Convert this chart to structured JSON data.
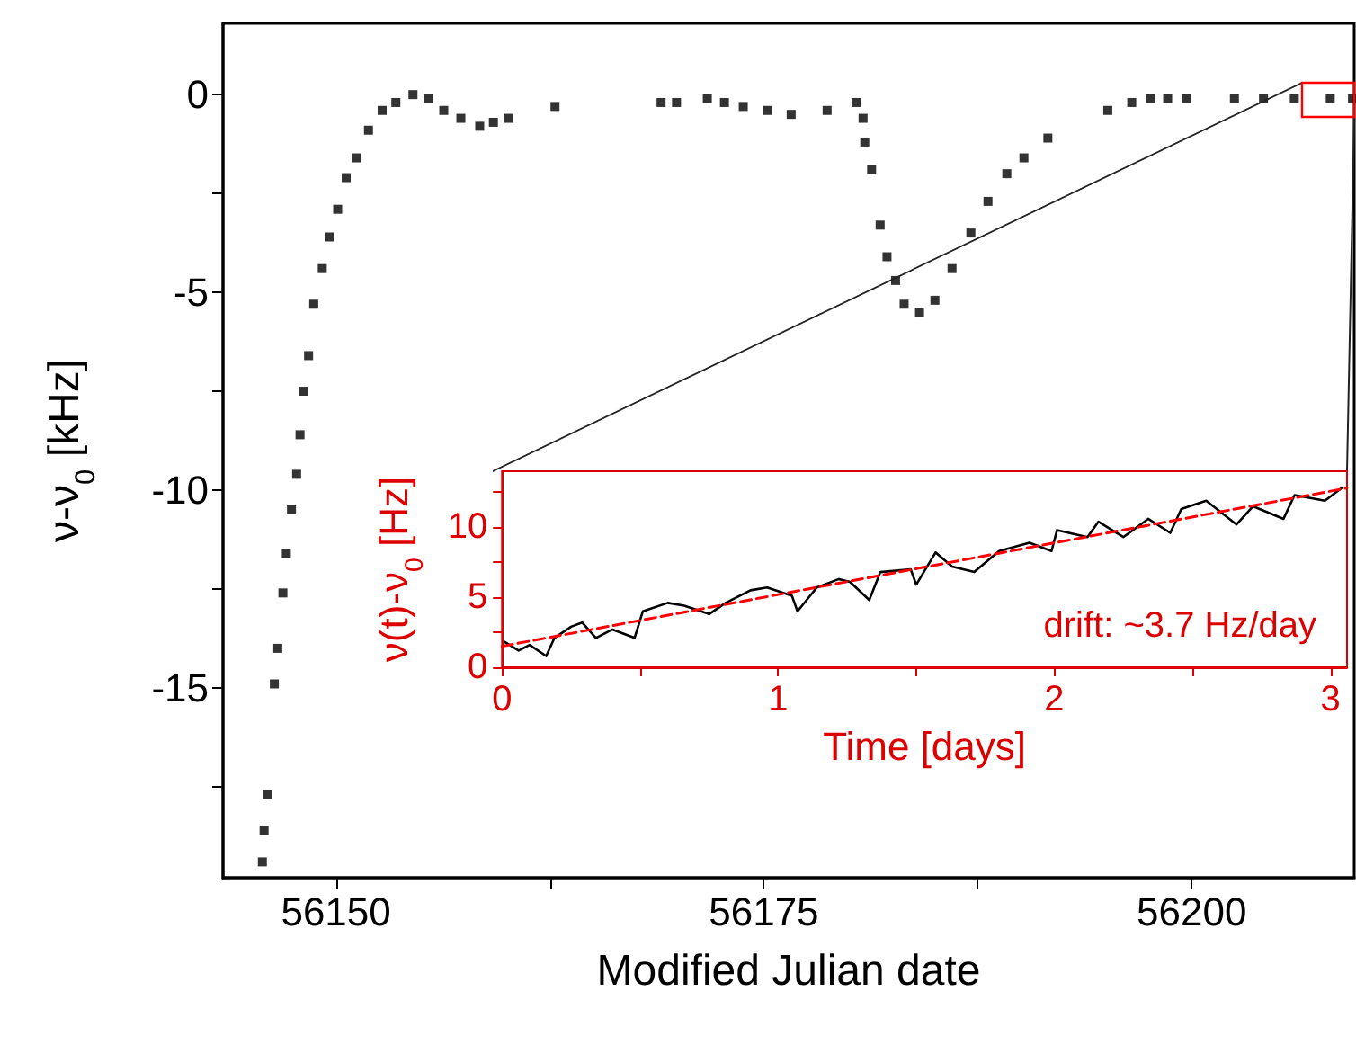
{
  "chart_data": [
    {
      "type": "scatter",
      "xlabel": "Modified Julian date",
      "ylabel": "ν-ν$_{0}$ [kHz]",
      "marker": "square",
      "xlim": [
        56143.4,
        56209.5
      ],
      "ylim": [
        -19.8,
        1.8
      ],
      "xticks": [
        56150,
        {
          "value": 56162.5,
          "label": null
        },
        56175,
        {
          "value": 56187.5,
          "label": null
        },
        56200
      ],
      "yticks": [
        {
          "value": -17.5,
          "label": null
        },
        -15,
        {
          "value": -12.5,
          "label": null
        },
        -10,
        {
          "value": -7.5,
          "label": null
        },
        -5,
        {
          "value": -2.5,
          "label": null
        },
        0
      ],
      "series": [
        {
          "color": "#000000",
          "x": [
            56145.7,
            56145.8,
            56146.0,
            56146.4,
            56146.6,
            56146.9,
            56147.1,
            56147.4,
            56147.7,
            56147.9,
            56148.1,
            56148.4,
            56148.7,
            56149.2,
            56149.6,
            56150.1,
            56150.6,
            56151.2,
            56151.9,
            56152.7,
            56153.5,
            56154.5,
            56155.4,
            56156.3,
            56157.3,
            56158.4,
            56159.2,
            56160.1,
            56162.8,
            56169.0,
            56169.9,
            56171.7,
            56172.7,
            56173.8,
            56175.2,
            56176.6,
            56178.7,
            56180.4,
            56180.8,
            56180.9,
            56181.3,
            56181.8,
            56182.2,
            56182.7,
            56183.2,
            56184.1,
            56185.0,
            56186.0,
            56187.1,
            56188.1,
            56189.2,
            56190.2,
            56191.6,
            56195.1,
            56196.5,
            56197.6,
            56198.6,
            56199.7,
            56202.5,
            56204.2,
            56206.0,
            56208.1,
            56209.4
          ],
          "values": [
            -19.4,
            -18.6,
            -17.7,
            -14.9,
            -14.0,
            -12.6,
            -11.6,
            -10.5,
            -9.6,
            -8.6,
            -7.5,
            -6.6,
            -5.3,
            -4.4,
            -3.6,
            -2.9,
            -2.1,
            -1.6,
            -0.9,
            -0.4,
            -0.2,
            0,
            -0.1,
            -0.4,
            -0.6,
            -0.8,
            -0.7,
            -0.6,
            -0.3,
            -0.2,
            -0.2,
            -0.1,
            -0.2,
            -0.3,
            -0.4,
            -0.5,
            -0.4,
            -0.2,
            -0.6,
            -1.2,
            -1.9,
            -3.3,
            -4.1,
            -4.7,
            -5.3,
            -5.5,
            -5.2,
            -4.4,
            -3.5,
            -2.7,
            -2.0,
            -1.6,
            -1.1,
            -0.4,
            -0.2,
            -0.1,
            -0.1,
            -0.1,
            -0.1,
            -0.1,
            -0.1,
            -0.1,
            -0.1
          ]
        }
      ]
    },
    {
      "type": "line",
      "xlabel": "Time [days]",
      "ylabel": "ν(t)-ν$_{0}$ [Hz]",
      "marker": "none",
      "xlim": [
        0,
        3.06
      ],
      "ylim": [
        0,
        14
      ],
      "xticks": [
        0,
        {
          "value": 0.5,
          "label": null
        },
        1,
        {
          "value": 1.5,
          "label": null
        },
        2,
        {
          "value": 2.5,
          "label": null
        },
        3
      ],
      "yticks": [
        0,
        {
          "value": 2.5,
          "label": null
        },
        5,
        {
          "value": 7.5,
          "label": null
        },
        10,
        {
          "value": 12.5,
          "label": null
        }
      ],
      "annotations": [
        "drift: ~3.7 Hz/day"
      ],
      "series": [
        {
          "color": "#000000",
          "line_style": "solid",
          "x": [
            0.01,
            0.06,
            0.1,
            0.16,
            0.19,
            0.25,
            0.29,
            0.34,
            0.4,
            0.48,
            0.51,
            0.6,
            0.66,
            0.75,
            0.81,
            0.9,
            0.96,
            1.05,
            1.07,
            1.14,
            1.22,
            1.26,
            1.33,
            1.37,
            1.48,
            1.5,
            1.57,
            1.63,
            1.71,
            1.8,
            1.91,
            1.99,
            2.01,
            2.12,
            2.16,
            2.25,
            2.34,
            2.42,
            2.46,
            2.55,
            2.66,
            2.72,
            2.83,
            2.87,
            2.98,
            3.04
          ],
          "values": [
            1.8,
            1.2,
            1.6,
            0.8,
            2.1,
            2.9,
            3.2,
            2.1,
            2.7,
            2.1,
            4.0,
            4.6,
            4.4,
            3.8,
            4.6,
            5.5,
            5.7,
            5.1,
            4.0,
            5.7,
            6.3,
            6.1,
            4.8,
            6.8,
            7.0,
            5.9,
            8.2,
            7.2,
            6.8,
            8.3,
            8.9,
            8.3,
            9.8,
            9.3,
            10.4,
            9.3,
            10.6,
            9.6,
            11.3,
            11.9,
            10.2,
            11.5,
            10.6,
            12.3,
            11.9,
            12.8
          ]
        },
        {
          "color": "#ff0000",
          "line_style": "dashed",
          "x": [
            0,
            3.06
          ],
          "values": [
            1.5,
            12.8
          ]
        }
      ]
    }
  ]
}
